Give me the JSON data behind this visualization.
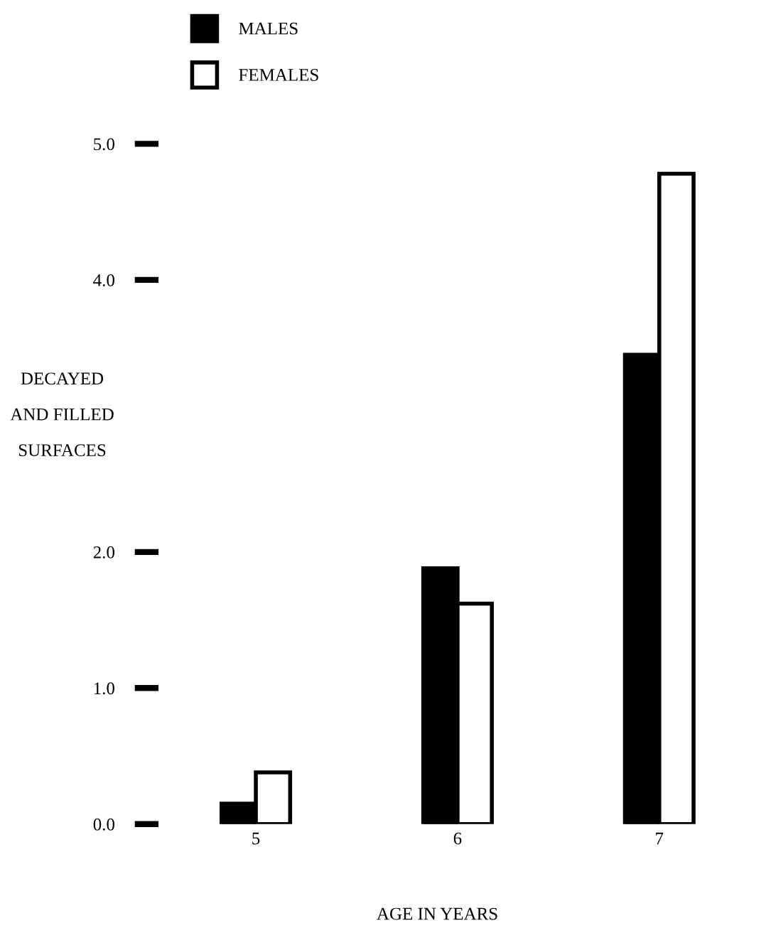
{
  "chart_data": {
    "type": "bar",
    "xlabel": "AGE IN YEARS",
    "ylabel": "DECAYED\nAND FILLED\nSURFACES",
    "categories": [
      "5",
      "6",
      "7"
    ],
    "series": [
      {
        "name": "MALES",
        "color": "#000000",
        "values": [
          0.15,
          1.88,
          3.45
        ]
      },
      {
        "name": "FEMALES",
        "color": "#ffffff",
        "values": [
          0.38,
          1.62,
          4.78
        ]
      }
    ],
    "ylim": [
      0,
      5.0
    ],
    "yticks": [
      {
        "value": 0,
        "label": "0.0"
      },
      {
        "value": 1,
        "label": "1.0"
      },
      {
        "value": 2,
        "label": "2.0"
      },
      {
        "value": 4,
        "label": "4.0"
      },
      {
        "value": 5,
        "label": "5.0"
      }
    ],
    "grid": false,
    "legend": "top left"
  }
}
